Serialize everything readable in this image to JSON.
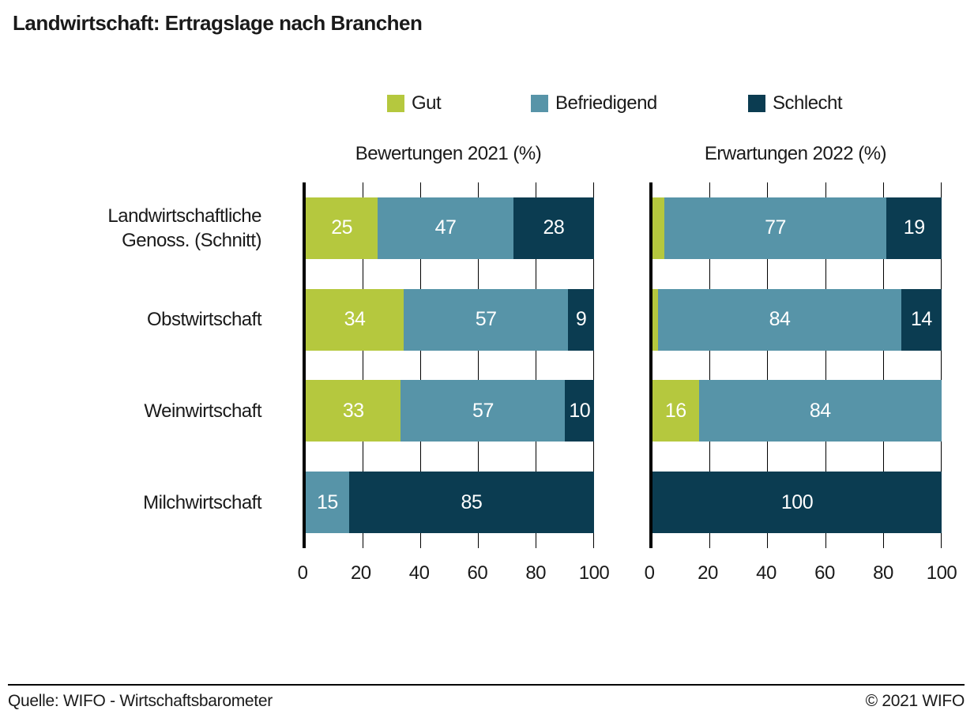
{
  "title": "Landwirtschaft: Ertragslage nach Branchen",
  "legend": [
    {
      "label": "Gut",
      "color": "#b5c83e"
    },
    {
      "label": "Befriedigend",
      "color": "#5794a8"
    },
    {
      "label": "Schlecht",
      "color": "#0b3c51"
    }
  ],
  "chart_data": {
    "type": "bar",
    "variant": "horizontal-stacked",
    "xlim": [
      0,
      100
    ],
    "xticks": [
      0,
      20,
      40,
      60,
      80,
      100
    ],
    "grid": true,
    "legend_position": "top",
    "categories": [
      {
        "label": "Landwirtschaftliche Genoss. (Schnitt)",
        "lines": [
          "Landwirtschaftliche",
          "Genoss. (Schnitt)"
        ]
      },
      {
        "label": "Obstwirtschaft",
        "lines": [
          "Obstwirtschaft"
        ]
      },
      {
        "label": "Weinwirtschaft",
        "lines": [
          "Weinwirtschaft"
        ]
      },
      {
        "label": "Milchwirtschaft",
        "lines": [
          "Milchwirtschaft"
        ]
      }
    ],
    "panels": [
      {
        "title": "Bewertungen 2021 (%)",
        "rows": [
          {
            "segments": [
              {
                "series": "Gut",
                "value": 25,
                "label": "25"
              },
              {
                "series": "Befriedigend",
                "value": 47,
                "label": "47"
              },
              {
                "series": "Schlecht",
                "value": 28,
                "label": "28"
              }
            ]
          },
          {
            "segments": [
              {
                "series": "Gut",
                "value": 34,
                "label": "34"
              },
              {
                "series": "Befriedigend",
                "value": 57,
                "label": "57"
              },
              {
                "series": "Schlecht",
                "value": 9,
                "label": "9"
              }
            ]
          },
          {
            "segments": [
              {
                "series": "Gut",
                "value": 33,
                "label": "33"
              },
              {
                "series": "Befriedigend",
                "value": 57,
                "label": "57"
              },
              {
                "series": "Schlecht",
                "value": 10,
                "label": "10"
              }
            ]
          },
          {
            "segments": [
              {
                "series": "Befriedigend",
                "value": 15,
                "label": "15"
              },
              {
                "series": "Schlecht",
                "value": 85,
                "label": "85"
              }
            ]
          }
        ]
      },
      {
        "title": "Erwartungen 2022 (%)",
        "rows": [
          {
            "segments": [
              {
                "series": "Gut",
                "value": 4,
                "label": ""
              },
              {
                "series": "Befriedigend",
                "value": 77,
                "label": "77"
              },
              {
                "series": "Schlecht",
                "value": 19,
                "label": "19"
              }
            ]
          },
          {
            "segments": [
              {
                "series": "Gut",
                "value": 2,
                "label": ""
              },
              {
                "series": "Befriedigend",
                "value": 84,
                "label": "84"
              },
              {
                "series": "Schlecht",
                "value": 14,
                "label": "14"
              }
            ]
          },
          {
            "segments": [
              {
                "series": "Gut",
                "value": 16,
                "label": "16"
              },
              {
                "series": "Befriedigend",
                "value": 84,
                "label": "84"
              }
            ]
          },
          {
            "segments": [
              {
                "series": "Schlecht",
                "value": 100,
                "label": "100"
              }
            ]
          }
        ]
      }
    ]
  },
  "footer": {
    "source": "Quelle: WIFO - Wirtschaftsbarometer",
    "copyright": "© 2021 WIFO"
  }
}
